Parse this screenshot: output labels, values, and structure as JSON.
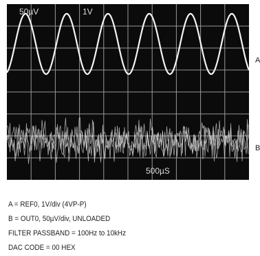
{
  "screen": {
    "labels": {
      "b_scale": "50µV",
      "a_scale": "1V",
      "time_base": "500µS"
    },
    "trace_labels": {
      "a": "A",
      "b": "B"
    }
  },
  "caption": {
    "lines": [
      "A = REF0, 1V/div (4VP-P)",
      "B = OUT0, 50µV/div, UNLOADED",
      "FILTER PASSBAND = 100Hz to 10kHz",
      "DAC CODE = 00 HEX"
    ]
  }
}
